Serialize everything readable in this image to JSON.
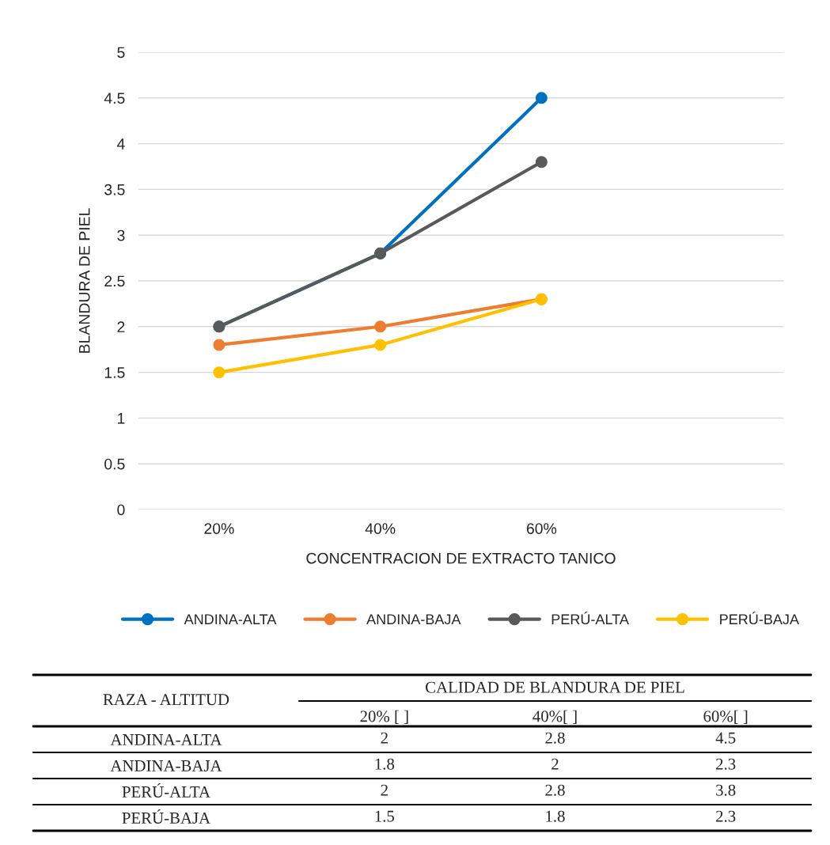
{
  "chart_data": [
    {
      "type": "line",
      "xlabel": "CONCENTRACION DE EXTRACTO TANICO",
      "ylabel": "BLANDURA DE PIEL",
      "categories": [
        "20%",
        "40%",
        "60%",
        null
      ],
      "series": [
        {
          "name": "ANDINA-ALTA",
          "color": "#0070c0",
          "values": [
            2,
            2.8,
            4.5,
            null
          ]
        },
        {
          "name": "ANDINA-BAJA",
          "color": "#ed7d31",
          "values": [
            1.8,
            2,
            2.3,
            null
          ]
        },
        {
          "name": "PERÚ-ALTA",
          "color": "#595959",
          "values": [
            2,
            2.8,
            3.8,
            null
          ]
        },
        {
          "name": "PERÚ-BAJA",
          "color": "#ffc000",
          "values": [
            1.5,
            1.8,
            2.3,
            null
          ]
        }
      ],
      "ylim": [
        0,
        5
      ],
      "yticks": [
        0,
        0.5,
        1,
        1.5,
        2,
        2.5,
        3,
        3.5,
        4,
        4.5,
        5
      ],
      "grid": "y",
      "legend": "bottom",
      "marker": "circle",
      "line_style": "solid"
    },
    {
      "type": "heatmap",
      "xlabel": "CALIDAD DE BLANDURA DE PIEL",
      "ylabel": "RAZA - ALTITUD",
      "categories": [
        "20% [ ]",
        "40%[ ]",
        "60%[ ]"
      ],
      "y_categories": [
        "ANDINA-ALTA",
        "ANDINA-BAJA",
        "PERÚ-ALTA",
        "PERÚ-BAJA"
      ],
      "cells": [
        [
          2,
          2.8,
          4.5
        ],
        [
          1.8,
          2,
          2.3
        ],
        [
          2,
          2.8,
          3.8
        ],
        [
          1.5,
          1.8,
          2.3
        ]
      ],
      "data_labels": true
    }
  ]
}
